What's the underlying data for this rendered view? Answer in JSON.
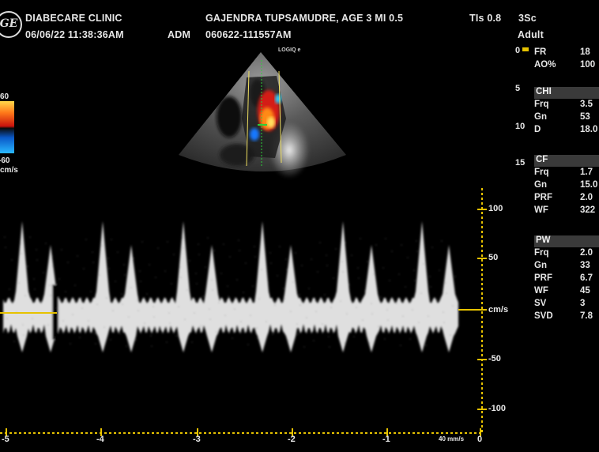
{
  "header": {
    "clinic": "DIABECARE CLINIC",
    "patient": "GAJENDRA TUPSAMUDRE, AGE 3 MI 0.5",
    "tis": "TIs 0.8",
    "probe": "3Sc",
    "date_time": "06/06/22 11:38:36AM",
    "operator": "ADM",
    "exam_id": "060622-111557AM",
    "preset": "Adult",
    "logo_text": "GE"
  },
  "probe_label": "LOGIQ e",
  "color_scale": {
    "top": "60",
    "bottom": "-60",
    "unit": "cm/s"
  },
  "depth_marks": [
    "0",
    "5",
    "10",
    "15"
  ],
  "params": {
    "general": [
      {
        "key": "FR",
        "value": "18"
      },
      {
        "key": "AO%",
        "value": "100"
      }
    ],
    "chi": {
      "title": "CHI",
      "rows": [
        {
          "key": "Frq",
          "value": "3.5"
        },
        {
          "key": "Gn",
          "value": "53"
        },
        {
          "key": "D",
          "value": "18.0"
        }
      ]
    },
    "cf": {
      "title": "CF",
      "rows": [
        {
          "key": "Frq",
          "value": "1.7"
        },
        {
          "key": "Gn",
          "value": "15.0"
        },
        {
          "key": "PRF",
          "value": "2.0"
        },
        {
          "key": "WF",
          "value": "322"
        }
      ]
    },
    "pw": {
      "title": "PW",
      "rows": [
        {
          "key": "Frq",
          "value": "2.0"
        },
        {
          "key": "Gn",
          "value": "33"
        },
        {
          "key": "PRF",
          "value": "6.7"
        },
        {
          "key": "WF",
          "value": "45"
        },
        {
          "key": "SV",
          "value": "3"
        },
        {
          "key": "SVD",
          "value": "7.8"
        }
      ]
    }
  },
  "doppler": {
    "y_ticks": [
      "100",
      "50",
      "cm/s",
      "-50",
      "-100"
    ],
    "x_ticks": [
      "-5",
      "-4",
      "-3",
      "-2",
      "-1",
      "0"
    ],
    "sweep_speed": "40 mm/s",
    "colors": {
      "spectrum": "#f2f2f2",
      "scale": "#e6c200",
      "baseline": "#e6c200"
    }
  }
}
